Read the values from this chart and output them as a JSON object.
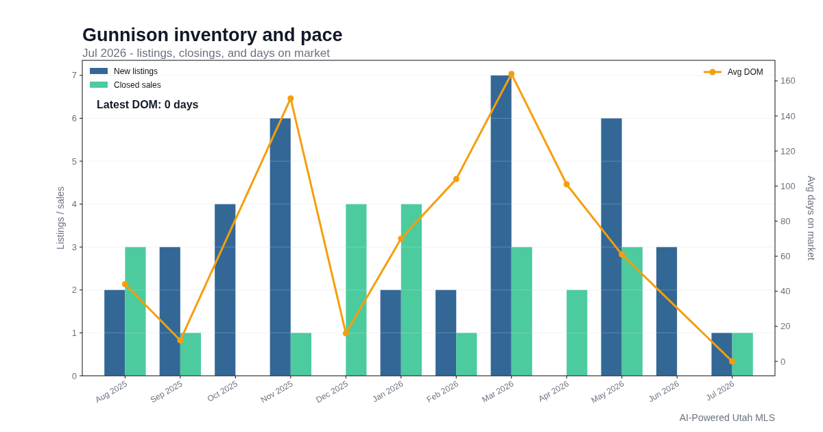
{
  "chart_data": {
    "type": "bar",
    "title": "Gunnison inventory and pace",
    "subtitle": "Jul 2026 - listings, closings, and days on market",
    "ylabel": "Listings / sales",
    "y2label": "Avg days on market",
    "categories": [
      "Aug 2025",
      "Sep 2025",
      "Oct 2025",
      "Nov 2025",
      "Dec 2025",
      "Jan 2026",
      "Feb 2026",
      "Mar 2026",
      "Apr 2026",
      "May 2026",
      "Jun 2026",
      "Jul 2026"
    ],
    "series": [
      {
        "name": "New listings",
        "color": "#336896",
        "values": [
          2,
          3,
          4,
          6,
          0,
          2,
          2,
          7,
          0,
          6,
          3,
          1
        ]
      },
      {
        "name": "Closed sales",
        "color": "#4ccb9e",
        "values": [
          3,
          1,
          0,
          1,
          4,
          4,
          1,
          3,
          2,
          3,
          0,
          1
        ]
      },
      {
        "name": "Avg DOM",
        "type": "line",
        "axis": "y2",
        "color": "#f59e0b",
        "values": [
          44,
          12,
          null,
          150,
          16,
          70,
          104,
          164,
          101,
          61,
          null,
          0
        ]
      }
    ],
    "ylim": [
      0,
      7.35
    ],
    "yticks": [
      0,
      1,
      2,
      3,
      4,
      5,
      6,
      7
    ],
    "y2lim": [
      -8.2,
      171.7
    ],
    "y2ticks": [
      0,
      20,
      40,
      60,
      80,
      100,
      120,
      140,
      160
    ],
    "grid": "y",
    "legend": "top left",
    "marker": "circle",
    "annotations": [
      "Latest DOM: 0 days",
      "AI-Powered Utah MLS"
    ]
  }
}
